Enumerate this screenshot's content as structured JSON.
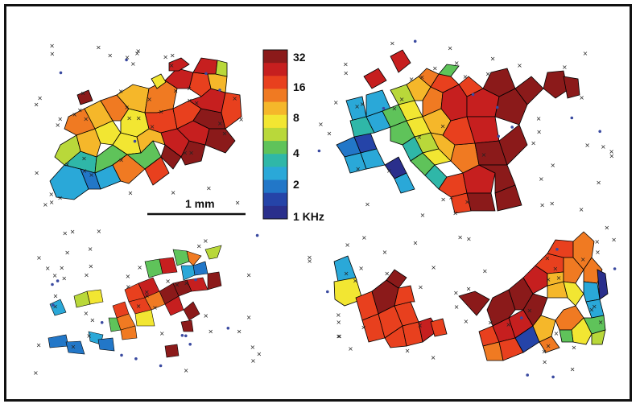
{
  "colorbar": {
    "ticks": [
      "32",
      "16",
      "8",
      "4",
      "2",
      "1 KHz"
    ],
    "colors": [
      "#8b1a1a",
      "#c61f1f",
      "#e8401e",
      "#f07a22",
      "#f5b72a",
      "#f2e632",
      "#b9d83a",
      "#5fc35a",
      "#2fb7a8",
      "#2aa8d8",
      "#2277c8",
      "#2544a8",
      "#2a2f8c"
    ]
  },
  "scale_bar": {
    "label": "1 mm"
  },
  "maps": [
    {
      "id": "top-left"
    },
    {
      "id": "top-right"
    },
    {
      "id": "bottom-left"
    },
    {
      "id": "bottom-right"
    }
  ]
}
